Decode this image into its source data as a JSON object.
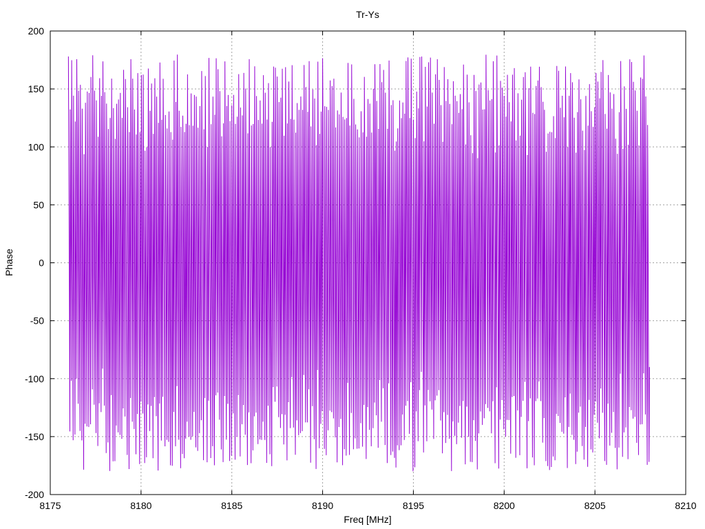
{
  "chart_data": {
    "type": "line",
    "title": "Tr-Ys",
    "xlabel": "Freq [MHz]",
    "ylabel": "Phase",
    "xlim": [
      8175,
      8210
    ],
    "ylim": [
      -200,
      200
    ],
    "xticks": [
      "8175",
      "8180",
      "8185",
      "8190",
      "8195",
      "8200",
      "8205",
      "8210"
    ],
    "yticks": [
      "200",
      "150",
      "100",
      "50",
      "0",
      "-50",
      "-100",
      "-150",
      "-200"
    ],
    "grid": true,
    "line_color": "#9400d3",
    "series": [
      {
        "x_start": 8176.0,
        "x_end": 8208.0,
        "x_step": 0.02,
        "phase_start_deg": 178,
        "phase_end_deg": -90,
        "phase_range_deg": [
          -180,
          180
        ],
        "description_wrap": "wrapped phase, approx 360 deg cycle per ~0.3 MHz"
      }
    ]
  }
}
